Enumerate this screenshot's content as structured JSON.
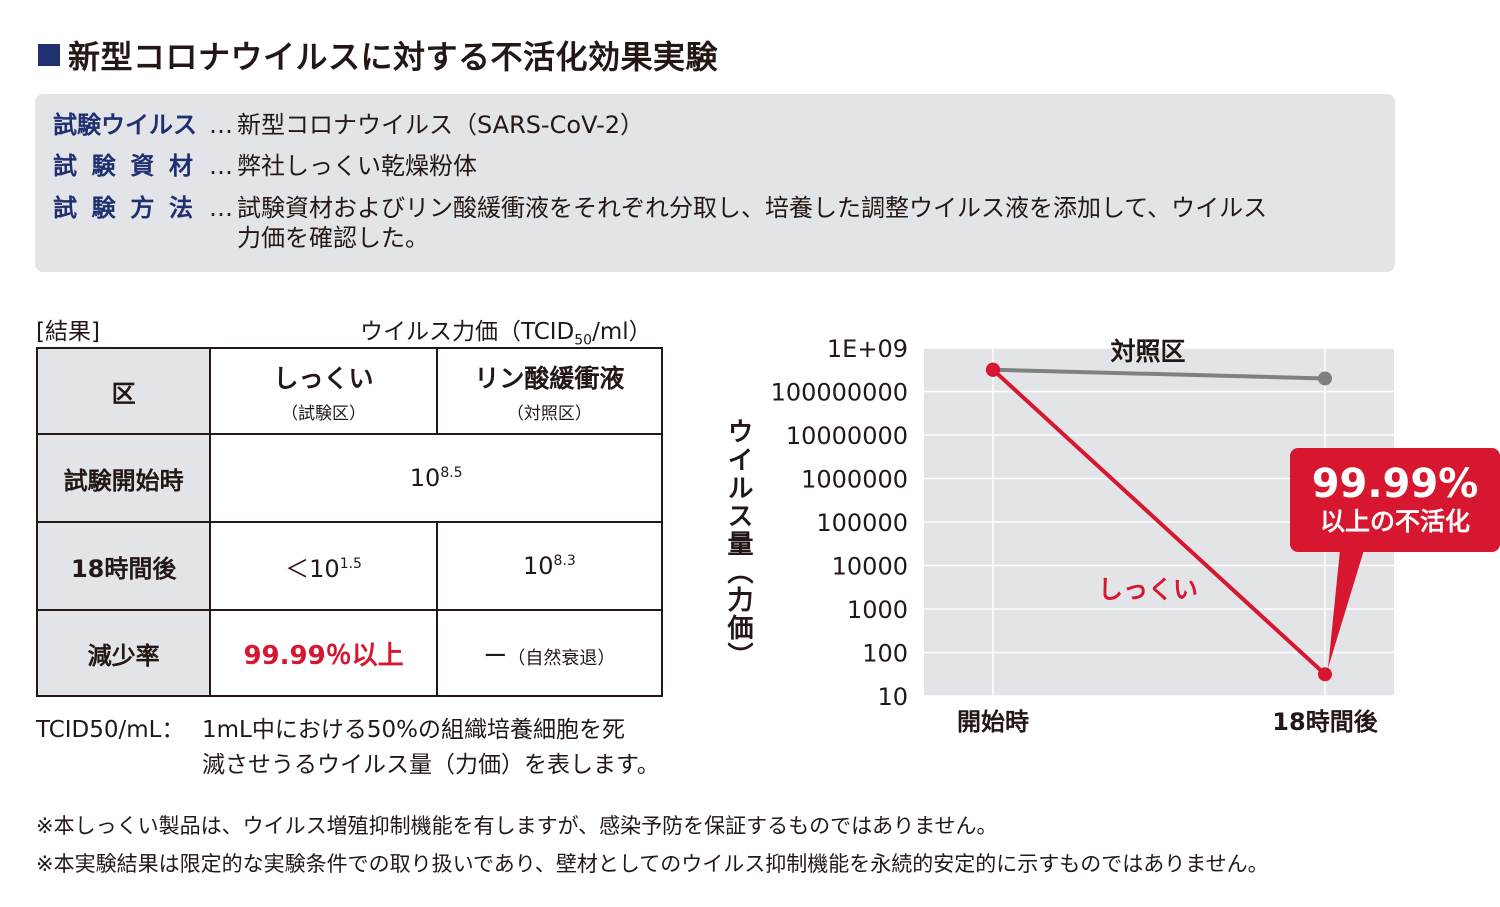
{
  "page": {
    "title": "新型コロナウイルスに対する不活化効果実験"
  },
  "info": {
    "virus_label": "試験ウイルス",
    "material_label": [
      "試",
      "験",
      "資",
      "材"
    ],
    "method_label": [
      "試",
      "験",
      "方",
      "法"
    ],
    "dots": "…",
    "virus_value": "新型コロナウイルス（SARS-CoV-2）",
    "material_value": "弊社しっくい乾燥粉体",
    "method_value_1": "試験資材およびリン酸緩衝液をそれぞれ分取し、培養した調整ウイルス液を添加して、ウイルス",
    "method_value_2": "力価を確認した。"
  },
  "results": {
    "label": "[結果]",
    "unit": "ウイルス力価（TCID",
    "unit_sub": "50",
    "unit_end": "/ml）",
    "header": {
      "col0": "区",
      "col1_main": "しっくい",
      "col1_sub": "（試験区）",
      "col2_main": "リン酸緩衝液",
      "col2_sub": "（対照区）"
    },
    "rows": [
      {
        "label": "試験開始時",
        "shared_base": "10",
        "shared_exp": "8.5"
      },
      {
        "label": "18時間後",
        "c1_prefix": "＜10",
        "c1_exp": "1.5",
        "c2_base": "10",
        "c2_exp": "8.3"
      },
      {
        "label": "減少率",
        "c1": "99.99％以上",
        "c2_main": "ー",
        "c2_sub": "（自然衰退）"
      }
    ]
  },
  "note": {
    "label": "TCID50/mL：",
    "line1": "1mL中における50%の組織培養細胞を死",
    "line2": "滅させうるウイルス量（力価）を表します。"
  },
  "footnotes": [
    "※本しっくい製品は、ウイルス増殖抑制機能を有しますが、感染予防を保証するものではありません。",
    "※本実験結果は限定的な実験条件での取り扱いであり、壁材としてのウイルス抑制機能を永続的安定的に示すものではありません。"
  ],
  "chart_data": {
    "type": "line",
    "ylabel": "ウイルス量（力価）",
    "y_scale": "log",
    "ylim": [
      10,
      1000000000
    ],
    "y_ticks": [
      {
        "value": 1000000000,
        "label": "1E+09"
      },
      {
        "value": 100000000,
        "label": "100000000"
      },
      {
        "value": 10000000,
        "label": "10000000"
      },
      {
        "value": 1000000,
        "label": "1000000"
      },
      {
        "value": 100000,
        "label": "100000"
      },
      {
        "value": 10000,
        "label": "10000"
      },
      {
        "value": 1000,
        "label": "1000"
      },
      {
        "value": 100,
        "label": "100"
      },
      {
        "value": 10,
        "label": "10"
      }
    ],
    "categories": [
      "開始時",
      "18時間後"
    ],
    "series": [
      {
        "name": "対照区",
        "values": [
          316227766,
          199526231
        ],
        "color": "#808080"
      },
      {
        "name": "しっくい",
        "values": [
          316227766,
          31.6
        ],
        "color": "#d7172f"
      }
    ],
    "grid": true,
    "background_color": "#e3e4e8",
    "callout": {
      "big": "99.99%",
      "small": "以上の不活化",
      "color": "#d7172f"
    }
  }
}
